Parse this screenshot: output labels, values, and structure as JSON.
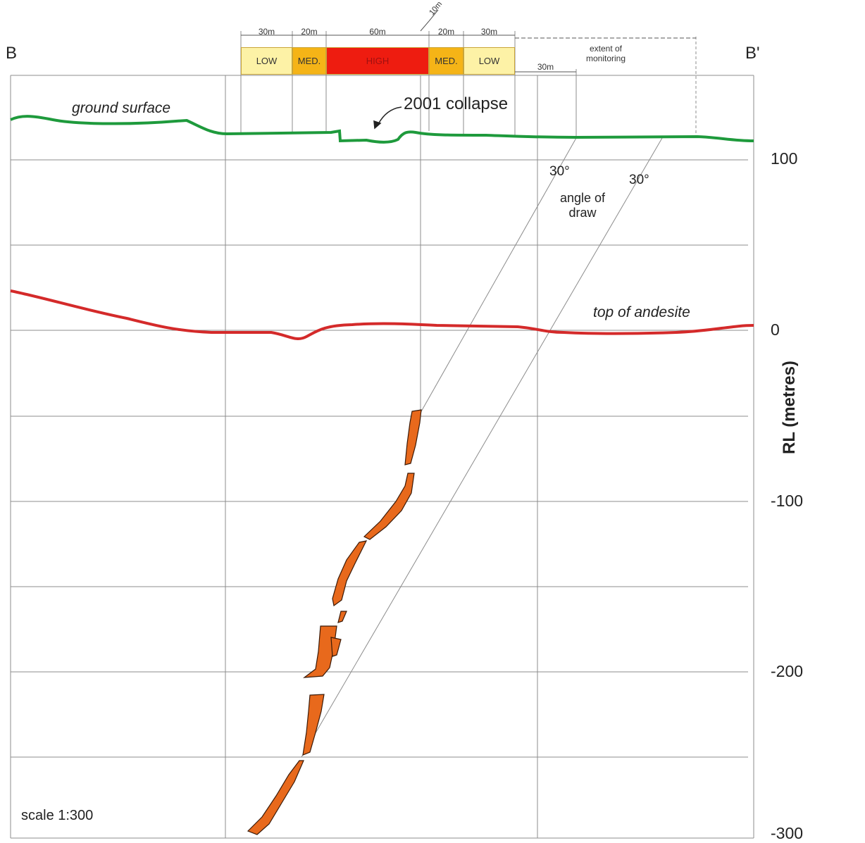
{
  "section": {
    "left_label": "B",
    "right_label": "B'"
  },
  "zones": [
    {
      "label": "LOW",
      "width_label": "30m",
      "color": "#fdf2a6"
    },
    {
      "label": "MED.",
      "width_label": "20m",
      "color": "#f5b417"
    },
    {
      "label": "HIGH",
      "width_label": "60m",
      "color": "#ee1c10"
    },
    {
      "label": "MED.",
      "width_label": "20m",
      "color": "#f5b417"
    },
    {
      "label": "LOW",
      "width_label": "30m",
      "color": "#fdf2a6"
    }
  ],
  "dimensions": {
    "gap_label": "10m",
    "offset_label": "30m",
    "monitoring_label": "extent of\nmonitoring"
  },
  "annotations": {
    "ground_surface": "ground surface",
    "collapse": "2001 collapse",
    "andesite": "top of andesite",
    "angle_1": "30°",
    "angle_2": "30°",
    "angle_of_draw": "angle of\ndraw",
    "scale": "scale 1:300"
  },
  "axis": {
    "title": "RL (metres)",
    "ticks": [
      "100",
      "0",
      "-100",
      "-200",
      "-300"
    ]
  },
  "colors": {
    "ground_line": "#1e9a3c",
    "andesite_line": "#d42a2a",
    "orebody": "#e8691c",
    "grid": "#8c8c8c"
  }
}
